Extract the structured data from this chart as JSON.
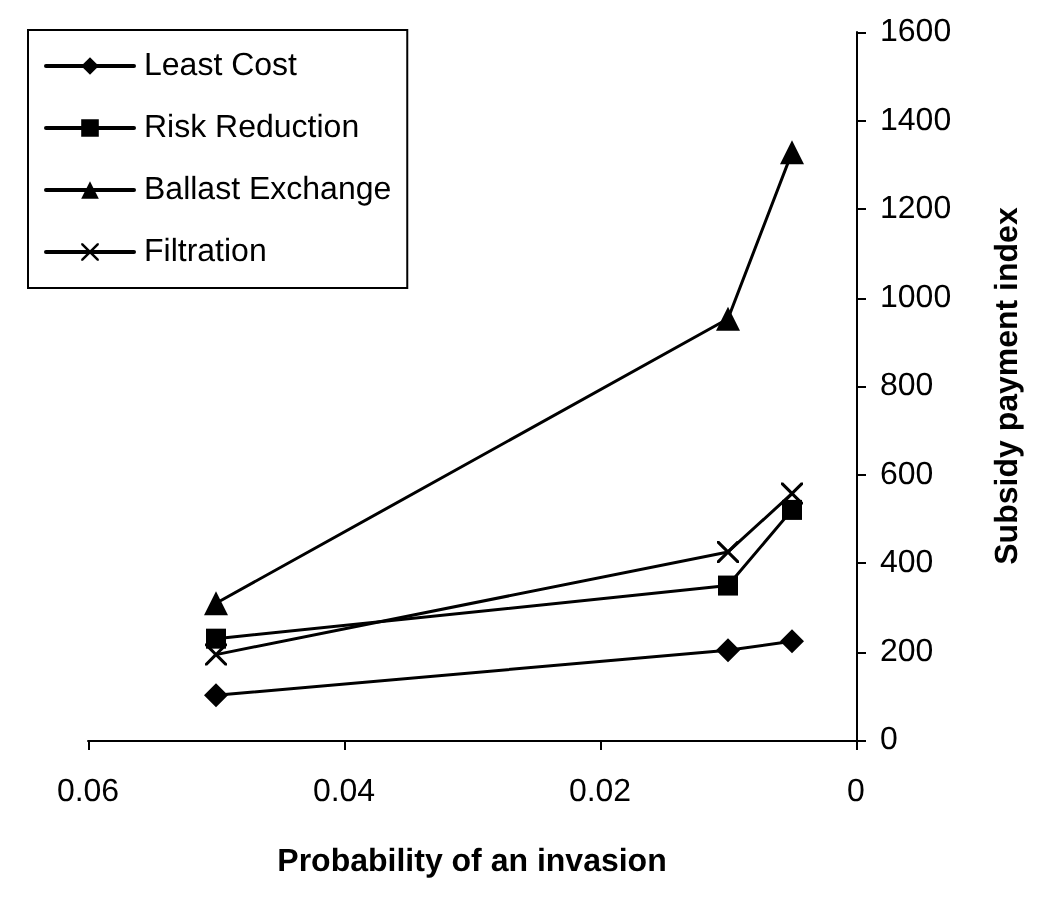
{
  "chart_data": {
    "type": "line",
    "xlabel": "Probability of an invasion",
    "ylabel": "Subsidy payment index",
    "x": [
      0.05,
      0.01,
      0.005
    ],
    "series": [
      {
        "name": "Least Cost",
        "color": "#000000",
        "marker": "diamond",
        "values": [
          101,
          203,
          223
        ]
      },
      {
        "name": "Risk Reduction",
        "color": "#000000",
        "marker": "square",
        "values": [
          229,
          349,
          520
        ]
      },
      {
        "name": "Ballast Exchange",
        "color": "#000000",
        "marker": "triangle",
        "values": [
          309,
          952,
          1328
        ]
      },
      {
        "name": "Filtration",
        "color": "#000000",
        "marker": "cross",
        "values": [
          193,
          425,
          557
        ]
      }
    ],
    "xlim": [
      0.06,
      0
    ],
    "xticks": [
      0.06,
      0.04,
      0.02,
      0
    ],
    "ylim": [
      0,
      1600
    ],
    "yticks": [
      0,
      200,
      400,
      600,
      800,
      1000,
      1200,
      1400,
      1600
    ],
    "grid": false,
    "legend": "top left",
    "line_style": "solid"
  }
}
